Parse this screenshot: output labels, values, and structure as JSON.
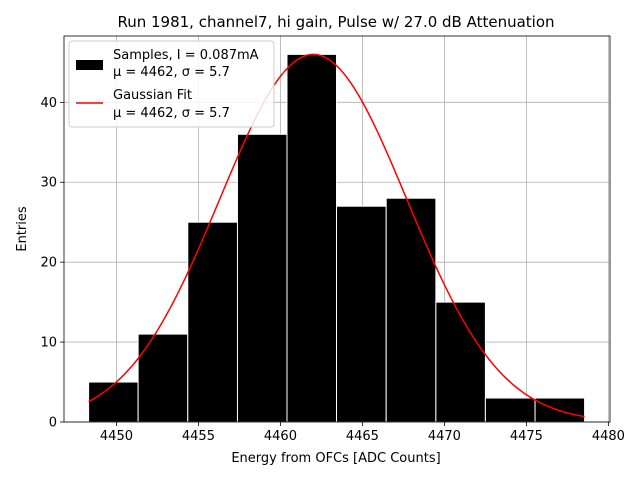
{
  "chart_data": {
    "type": "bar",
    "title": "Run 1981, channel7, hi gain, Pulse w/ 27.0 dB Attenuation",
    "xlabel": "Energy from OFCs [ADC Counts]",
    "ylabel": "Entries",
    "xlim": [
      4446.8,
      4480.1
    ],
    "ylim": [
      0,
      48.3
    ],
    "xticks": [
      4450,
      4455,
      4460,
      4465,
      4470,
      4475,
      4480
    ],
    "yticks": [
      0,
      10,
      20,
      30,
      40
    ],
    "grid": true,
    "legend_position": "top-left",
    "histogram": {
      "name_line1": "Samples, I = 0.087mA",
      "name_line2": "μ = 4462, σ = 5.7",
      "bin_edges": [
        4448.3,
        4451.32,
        4454.35,
        4457.38,
        4460.4,
        4463.42,
        4466.45,
        4469.48,
        4472.5,
        4475.53,
        4478.55
      ],
      "counts": [
        5,
        11,
        25,
        36,
        46,
        27,
        28,
        15,
        3,
        3
      ],
      "color": "#000000"
    },
    "fit": {
      "name_line1": "Gaussian Fit",
      "name_line2": "μ = 4462, σ = 5.7",
      "mu": 4462,
      "sigma": 5.7,
      "amplitude": 46,
      "x_range": [
        4448.3,
        4478.55
      ],
      "color": "#ff0000"
    }
  }
}
